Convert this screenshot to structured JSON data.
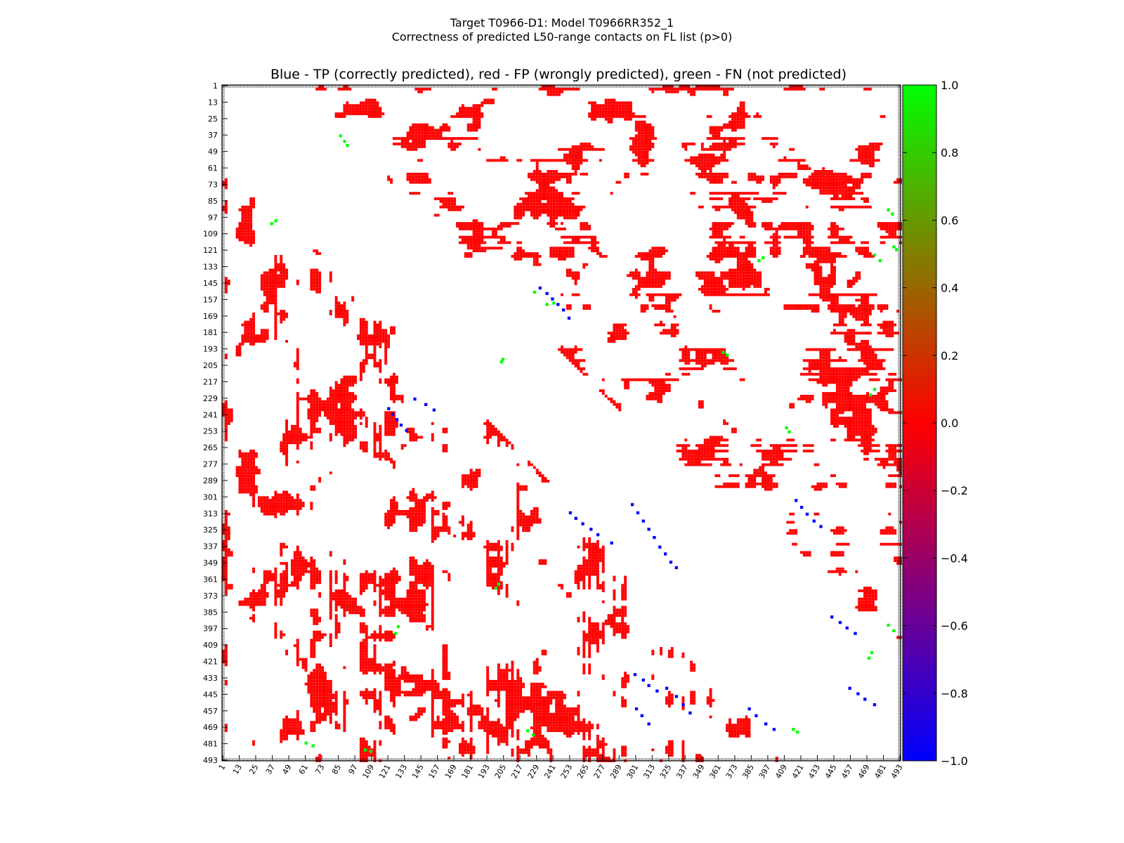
{
  "header": {
    "suptitle_line1": "Target T0966-D1: Model T0966RR352_1",
    "suptitle_line2": "Correctness of predicted L50-range contacts on FL list (p>0)"
  },
  "chart_data": {
    "type": "heatmap",
    "title": "Blue - TP (correctly predicted), red - FP (wrongly predicted), green - FN (not predicted)",
    "xlabel": "",
    "ylabel": "",
    "xlim": [
      1,
      493
    ],
    "ylim": [
      1,
      493
    ],
    "y_inverted": true,
    "x_ticks": [
      "1",
      "13",
      "25",
      "37",
      "49",
      "61",
      "73",
      "85",
      "97",
      "109",
      "121",
      "133",
      "145",
      "157",
      "169",
      "181",
      "193",
      "205",
      "217",
      "229",
      "241",
      "253",
      "265",
      "277",
      "289",
      "301",
      "313",
      "325",
      "337",
      "349",
      "361",
      "373",
      "385",
      "397",
      "409",
      "421",
      "433",
      "445",
      "457",
      "469",
      "481",
      "493"
    ],
    "y_ticks": [
      "1",
      "13",
      "25",
      "37",
      "49",
      "61",
      "73",
      "85",
      "97",
      "109",
      "121",
      "133",
      "145",
      "157",
      "169",
      "181",
      "193",
      "205",
      "217",
      "229",
      "241",
      "253",
      "265",
      "277",
      "289",
      "301",
      "313",
      "325",
      "337",
      "349",
      "361",
      "373",
      "385",
      "397",
      "409",
      "421",
      "433",
      "445",
      "457",
      "469",
      "481",
      "493"
    ],
    "colorbar": {
      "range": [
        -1.0,
        1.0
      ],
      "ticks": [
        "1.0",
        "0.8",
        "0.6",
        "0.4",
        "0.2",
        "0.0",
        "−0.2",
        "−0.4",
        "−0.6",
        "−0.8",
        "−1.0"
      ],
      "colors": {
        "low": "#0000ff",
        "mid": "#ff0000",
        "high": "#00ff00"
      }
    },
    "value_legend": {
      "TP": -1.0,
      "FP": 0.0,
      "FN": 1.0
    },
    "series": [
      {
        "value": 0.0,
        "color": "#ff0000",
        "density": 0.34
      },
      {
        "value": -1.0,
        "color": "#0000ff",
        "points": [
          [
            148,
            231
          ],
          [
            152,
            236
          ],
          [
            156,
            240
          ],
          [
            160,
            244
          ],
          [
            164,
            248
          ],
          [
            170,
            252
          ],
          [
            236,
            121
          ],
          [
            240,
            124
          ],
          [
            244,
            127
          ],
          [
            248,
            130
          ],
          [
            252,
            134
          ],
          [
            229,
            140
          ],
          [
            233,
            148
          ],
          [
            237,
            154
          ],
          [
            312,
            253
          ],
          [
            316,
            257
          ],
          [
            320,
            262
          ],
          [
            324,
            268
          ],
          [
            328,
            273
          ],
          [
            334,
            283
          ],
          [
            306,
            298
          ],
          [
            312,
            302
          ],
          [
            318,
            306
          ],
          [
            324,
            310
          ],
          [
            330,
            314
          ],
          [
            337,
            318
          ],
          [
            342,
            322
          ],
          [
            348,
            326
          ],
          [
            352,
            330
          ],
          [
            430,
            300
          ],
          [
            434,
            306
          ],
          [
            438,
            310
          ],
          [
            442,
            316
          ],
          [
            455,
            301
          ],
          [
            460,
            305
          ],
          [
            466,
            310
          ],
          [
            440,
            323
          ],
          [
            446,
            330
          ],
          [
            452,
            335
          ],
          [
            458,
            340
          ],
          [
            303,
            417
          ],
          [
            308,
            421
          ],
          [
            313,
            425
          ],
          [
            318,
            430
          ],
          [
            322,
            435
          ],
          [
            388,
            443
          ],
          [
            392,
            449
          ],
          [
            396,
            454
          ],
          [
            400,
            460
          ],
          [
            455,
            383
          ],
          [
            460,
            388
          ],
          [
            466,
            395
          ],
          [
            470,
            401
          ],
          [
            440,
            456
          ],
          [
            444,
            462
          ],
          [
            448,
            467
          ],
          [
            452,
            474
          ]
        ]
      },
      {
        "value": 1.0,
        "color": "#00ff00",
        "points": [
          [
            37,
            86
          ],
          [
            41,
            89
          ],
          [
            44,
            91
          ],
          [
            101,
            36
          ],
          [
            99,
            39
          ],
          [
            151,
            227
          ],
          [
            160,
            236
          ],
          [
            159,
            241
          ],
          [
            202,
            203
          ],
          [
            200,
            204
          ],
          [
            195,
            364
          ],
          [
            197,
            367
          ],
          [
            364,
            201
          ],
          [
            367,
            199
          ],
          [
            395,
            128
          ],
          [
            400,
            126
          ],
          [
            414,
            472
          ],
          [
            418,
            470
          ],
          [
            471,
            222
          ],
          [
            474,
            226
          ],
          [
            128,
            390
          ],
          [
            126,
            393
          ],
          [
            226,
            471
          ],
          [
            222,
            474
          ],
          [
            250,
            410
          ],
          [
            253,
            412
          ],
          [
            470,
            415
          ],
          [
            472,
            418
          ],
          [
            480,
            61
          ],
          [
            482,
            66
          ],
          [
            485,
            104
          ],
          [
            486,
            108
          ],
          [
            91,
            484
          ],
          [
            94,
            487
          ],
          [
            118,
            488
          ],
          [
            120,
            490
          ],
          [
            124,
            474
          ],
          [
            128,
            478
          ],
          [
            394,
            484
          ],
          [
            398,
            488
          ]
        ]
      }
    ]
  }
}
